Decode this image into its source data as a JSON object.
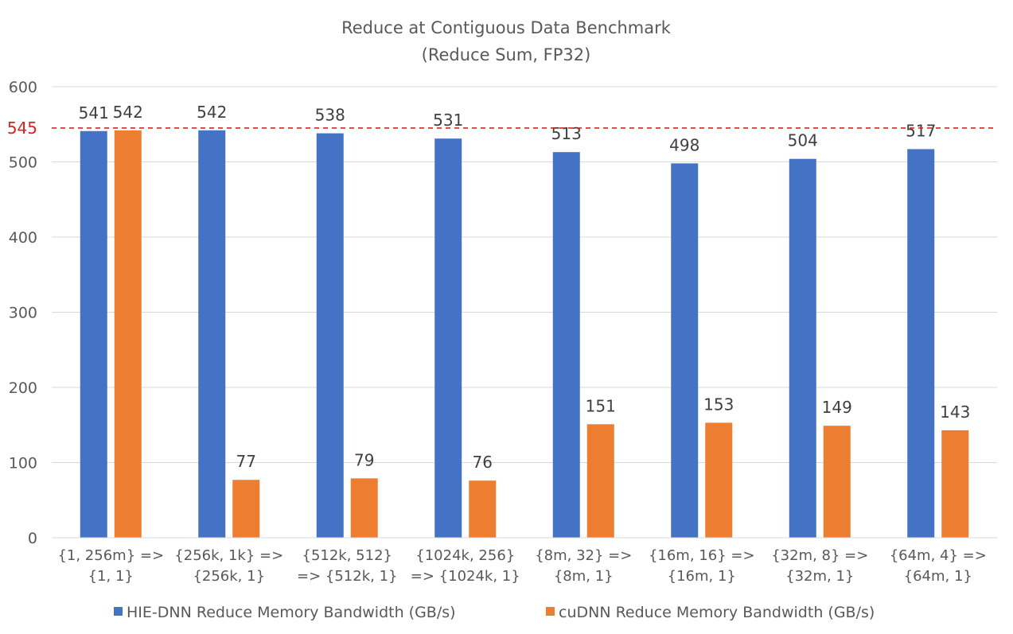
{
  "chart_data": {
    "type": "bar",
    "title": "Reduce at Contiguous Data Benchmark",
    "subtitle": "(Reduce Sum, FP32)",
    "categories": [
      [
        "{1, 256m} =>",
        "{1, 1}"
      ],
      [
        "{256k, 1k} =>",
        "{256k, 1}"
      ],
      [
        "{512k, 512}",
        "=> {512k, 1}"
      ],
      [
        "{1024k, 256}",
        "=> {1024k, 1}"
      ],
      [
        "{8m, 32} =>",
        "{8m, 1}"
      ],
      [
        "{16m, 16} =>",
        "{16m, 1}"
      ],
      [
        "{32m, 8} =>",
        "{32m, 1}"
      ],
      [
        "{64m, 4} =>",
        "{64m, 1}"
      ]
    ],
    "series": [
      {
        "name": "HIE-DNN Reduce Memory Bandwidth (GB/s)",
        "color": "#4472c4",
        "values": [
          541,
          542,
          538,
          531,
          513,
          498,
          504,
          517
        ]
      },
      {
        "name": "cuDNN Reduce Memory Bandwidth (GB/s)",
        "color": "#ed7d31",
        "values": [
          542,
          77,
          79,
          76,
          151,
          153,
          149,
          143
        ]
      }
    ],
    "ylim": [
      0,
      600
    ],
    "yticks": [
      0,
      100,
      200,
      300,
      400,
      500,
      600
    ],
    "reference_line": {
      "value": 545,
      "label": "545",
      "color": "#e02020"
    },
    "grid": true,
    "legend": "bottom"
  }
}
